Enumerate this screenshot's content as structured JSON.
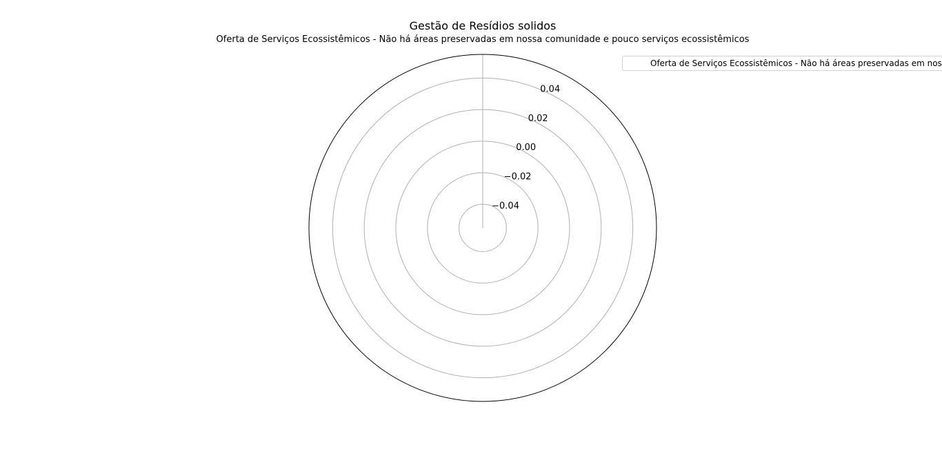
{
  "chart_data": {
    "type": "radar",
    "title": "Gestão de Resídios solidos",
    "subtitle": "Oferta de Serviços Ecossistêmicos   - Não há áreas preservadas em nossa comunidade e pouco serviços ecossistêmicos",
    "radial_ticks": [
      "−0.04",
      "−0.02",
      "0.00",
      "0.02",
      "0.04"
    ],
    "radial_tick_values": [
      -0.04,
      -0.02,
      0.0,
      0.02,
      0.04
    ],
    "rlim": [
      -0.055,
      0.055
    ],
    "grid": true,
    "legend_placement": "top-right",
    "series": [
      {
        "name": "Oferta de Serviços Ecossistêmicos   - Não há áreas preservadas em nossa comunidade e poucos serviços ecossistêmicos",
        "values": []
      }
    ]
  }
}
